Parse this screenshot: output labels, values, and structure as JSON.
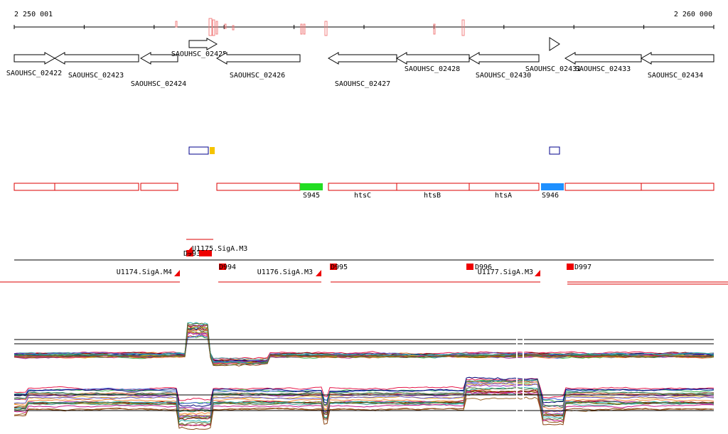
{
  "ruler": {
    "start_label": "2 250 001",
    "end_label": "2 260 000"
  },
  "genes": [
    "SAOUHSC_02422",
    "SAOUHSC_02423",
    "SAOUHSC_02424",
    "SAOUHSC_02425",
    "SAOUHSC_02426",
    "SAOUHSC_02427",
    "SAOUHSC_02428",
    "SAOUHSC_02430",
    "SAOUHSC_02431",
    "SAOUHSC_02433",
    "SAOUHSC_02434"
  ],
  "features": [
    "S945",
    "htsC",
    "htsB",
    "htsA",
    "S946"
  ],
  "probes": [
    "D993",
    "D994",
    "D995",
    "D996",
    "D997"
  ],
  "promoters": [
    "U1174.SigA.M4",
    "U1175.SigA.M3",
    "U1176.SigA.M3",
    "U1177.SigA.M3"
  ]
}
